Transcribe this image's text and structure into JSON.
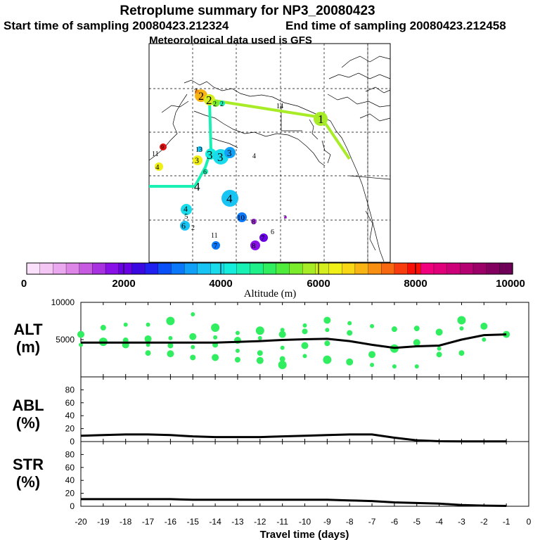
{
  "header": {
    "title": "Retroplume summary for NP3_20080423",
    "start": "Start time of sampling 20080423.212324",
    "end": "End time of sampling 20080423.212458",
    "met": "Meteorological data used is GFS"
  },
  "colorbar": {
    "label": "Altitude (m)",
    "ticks": [
      "0",
      "2000",
      "4000",
      "6000",
      "8000",
      "10000"
    ],
    "colors": [
      "#fbe0fb",
      "#f4c6f4",
      "#eaa8ee",
      "#dd86e8",
      "#c65ae0",
      "#a832e0",
      "#8a10e8",
      "#6a00e6",
      "#3a08e0",
      "#2020f0",
      "#0a50f8",
      "#0a78f8",
      "#10a0f8",
      "#18c4f4",
      "#18dcec",
      "#14ecdc",
      "#18f0b4",
      "#20f08a",
      "#30ee60",
      "#50ec3c",
      "#7aec2c",
      "#a8ec28",
      "#d4ee20",
      "#f0f018",
      "#f8d816",
      "#f8b414",
      "#f88e12",
      "#f86810",
      "#f83c0e",
      "#f81008",
      "#f0007c",
      "#e0007a",
      "#cc0078",
      "#b40070",
      "#9c0068",
      "#840060",
      "#6e0058"
    ]
  },
  "map": {
    "labels": {
      "p1": "1",
      "p2a": "2",
      "p2b": "2",
      "p2c": "2",
      "p2d": "2",
      "p3a": "3",
      "p3b": "3",
      "p3c": "3",
      "p3d": "3",
      "p4a": "4",
      "p4b": "4",
      "p4c": "4",
      "p4d": "4",
      "p4e": "4",
      "p5": "5",
      "p6a": "6",
      "p6b": "6",
      "p6c": "6",
      "p7a": "7",
      "p7b": "7",
      "p8a": "8",
      "p8b": "8",
      "p9": "9",
      "p10": "10",
      "p11a": "11",
      "p11b": "11",
      "p13": "13",
      "p14": "14"
    }
  },
  "panels": {
    "alt": {
      "title": [
        "ALT",
        "(m)"
      ]
    },
    "abl": {
      "title": [
        "ABL",
        "(%)"
      ]
    },
    "str": {
      "title": [
        "STR",
        "(%)"
      ]
    },
    "xlabel": "Travel time (days)"
  },
  "chart_data": [
    {
      "type": "line",
      "name": "ALT",
      "ylabel": "ALT (m)",
      "ylim": [
        0,
        10000
      ],
      "yticks": [
        5000,
        10000
      ],
      "xlim": [
        -20,
        0
      ],
      "x": [
        -20,
        -19,
        -18,
        -17,
        -16,
        -15,
        -14,
        -13,
        -12,
        -11,
        -10,
        -9,
        -8,
        -7,
        -6,
        -5,
        -4,
        -3,
        -2,
        -1
      ],
      "values": [
        4600,
        4600,
        4600,
        4600,
        4600,
        4600,
        4600,
        4700,
        4800,
        4950,
        5050,
        5100,
        4800,
        4300,
        3900,
        4100,
        4200,
        5000,
        5600,
        5700
      ],
      "scatter": [
        [
          -20,
          5700
        ],
        [
          -20,
          4300
        ],
        [
          -19,
          6600
        ],
        [
          -19,
          4700
        ],
        [
          -18,
          7000
        ],
        [
          -18,
          4900
        ],
        [
          -18,
          4300
        ],
        [
          -17,
          7000
        ],
        [
          -17,
          5100
        ],
        [
          -17,
          4300
        ],
        [
          -17,
          3200
        ],
        [
          -16,
          7500
        ],
        [
          -16,
          5200
        ],
        [
          -16,
          4200
        ],
        [
          -16,
          3100
        ],
        [
          -15,
          8400
        ],
        [
          -15,
          5400
        ],
        [
          -15,
          4000
        ],
        [
          -15,
          2600
        ],
        [
          -14,
          6600
        ],
        [
          -14,
          5300
        ],
        [
          -14,
          4300
        ],
        [
          -14,
          2600
        ],
        [
          -13,
          5900
        ],
        [
          -13,
          4900
        ],
        [
          -13,
          3500
        ],
        [
          -13,
          2300
        ],
        [
          -12,
          6200
        ],
        [
          -12,
          5200
        ],
        [
          -12,
          3200
        ],
        [
          -12,
          2200
        ],
        [
          -11,
          6300
        ],
        [
          -11,
          5700
        ],
        [
          -11,
          3900
        ],
        [
          -11,
          2400
        ],
        [
          -11,
          1600
        ],
        [
          -10,
          6900
        ],
        [
          -10,
          6100
        ],
        [
          -10,
          4200
        ],
        [
          -10,
          2800
        ],
        [
          -9,
          7600
        ],
        [
          -9,
          6300
        ],
        [
          -9,
          4500
        ],
        [
          -9,
          2300
        ],
        [
          -8,
          7200
        ],
        [
          -8,
          5900
        ],
        [
          -8,
          2000
        ],
        [
          -7,
          6800
        ],
        [
          -7,
          3000
        ],
        [
          -7,
          1600
        ],
        [
          -6,
          6400
        ],
        [
          -6,
          3800
        ],
        [
          -6,
          1400
        ],
        [
          -5,
          6500
        ],
        [
          -5,
          4600
        ],
        [
          -5,
          1400
        ],
        [
          -4,
          6000
        ],
        [
          -4,
          3800
        ],
        [
          -4,
          3000
        ],
        [
          -3,
          7600
        ],
        [
          -3,
          6500
        ],
        [
          -3,
          3200
        ],
        [
          -2,
          6800
        ],
        [
          -2,
          5000
        ],
        [
          -1,
          5700
        ]
      ]
    },
    {
      "type": "line",
      "name": "ABL",
      "ylabel": "ABL (%)",
      "ylim": [
        0,
        100
      ],
      "yticks": [
        0,
        20,
        40,
        60,
        80
      ],
      "xlim": [
        -20,
        0
      ],
      "x": [
        -20,
        -19,
        -18,
        -17,
        -16,
        -15,
        -14,
        -13,
        -12,
        -11,
        -10,
        -9,
        -8,
        -7,
        -6,
        -5,
        -4,
        -3,
        -2,
        -1
      ],
      "values": [
        9,
        10,
        11,
        11,
        10,
        8,
        7,
        7,
        7,
        8,
        9,
        10,
        11,
        11,
        6,
        2,
        0.5,
        0.3,
        0.2,
        0.2
      ]
    },
    {
      "type": "line",
      "name": "STR",
      "ylabel": "STR (%)",
      "ylim": [
        0,
        100
      ],
      "yticks": [
        0,
        20,
        40,
        60,
        80
      ],
      "xlim": [
        -20,
        0
      ],
      "x": [
        -20,
        -19,
        -18,
        -17,
        -16,
        -15,
        -14,
        -13,
        -12,
        -11,
        -10,
        -9,
        -8,
        -7,
        -6,
        -5,
        -4,
        -3,
        -2,
        -1
      ],
      "values": [
        11,
        11,
        11,
        11,
        11,
        10,
        10,
        10,
        10,
        10,
        10,
        10,
        9,
        8,
        6,
        5,
        4,
        2,
        1,
        0.5
      ],
      "xticks": [
        "-20",
        "-19",
        "-18",
        "-17",
        "-16",
        "-15",
        "-14",
        "-13",
        "-12",
        "-11",
        "-10",
        "-9",
        "-8",
        "-7",
        "-6",
        "-5",
        "-4",
        "-3",
        "-2",
        "-1",
        "0"
      ],
      "xlabel": "Travel time (days)"
    }
  ]
}
